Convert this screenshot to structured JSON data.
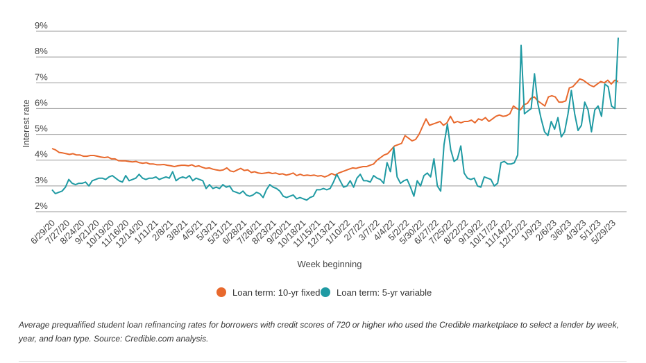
{
  "chart_data": {
    "type": "line",
    "xlabel": "Week beginning",
    "ylabel": "Interest rate",
    "ylim": [
      2,
      9
    ],
    "yticks": [
      "9%",
      "8%",
      "7%",
      "6%",
      "5%",
      "4%",
      "3%",
      "2%"
    ],
    "grid": "horizontal",
    "legend_position": "bottom",
    "x_tick_labels": [
      "6/29/20",
      "7/27/20",
      "8/24/20",
      "9/21/20",
      "10/19/20",
      "11/16/20",
      "12/14/20",
      "1/11/21",
      "2/8/21",
      "3/8/21",
      "4/5/21",
      "5/3/21",
      "5/31/21",
      "6/28/21",
      "7/26/21",
      "8/23/21",
      "9/20/21",
      "10/18/21",
      "11/15/21",
      "12/13/21",
      "1/10/22",
      "2/7/22",
      "3/7/22",
      "4/4/22",
      "5/2/22",
      "5/30/22",
      "6/27/22",
      "7/25/22",
      "8/22/22",
      "9/19/22",
      "10/17/22",
      "11/14/22",
      "12/12/22",
      "1/9/23",
      "2/6/23",
      "3/6/23",
      "4/3/23",
      "5/1/23",
      "5/29/23"
    ],
    "series": [
      {
        "name": "Loan term: 10-yr fixed",
        "color": "#E8692D",
        "values": [
          4.45,
          4.4,
          4.3,
          4.28,
          4.25,
          4.22,
          4.25,
          4.2,
          4.2,
          4.15,
          4.15,
          4.18,
          4.18,
          4.15,
          4.12,
          4.1,
          4.12,
          4.05,
          4.05,
          3.98,
          3.97,
          3.97,
          3.95,
          3.93,
          3.95,
          3.9,
          3.88,
          3.9,
          3.85,
          3.85,
          3.82,
          3.82,
          3.83,
          3.8,
          3.78,
          3.75,
          3.78,
          3.8,
          3.8,
          3.78,
          3.82,
          3.75,
          3.78,
          3.72,
          3.68,
          3.7,
          3.65,
          3.62,
          3.6,
          3.62,
          3.7,
          3.58,
          3.55,
          3.62,
          3.68,
          3.6,
          3.62,
          3.52,
          3.55,
          3.5,
          3.48,
          3.5,
          3.52,
          3.48,
          3.5,
          3.45,
          3.47,
          3.42,
          3.45,
          3.5,
          3.4,
          3.45,
          3.4,
          3.42,
          3.4,
          3.42,
          3.38,
          3.4,
          3.35,
          3.4,
          3.48,
          3.42,
          3.5,
          3.55,
          3.6,
          3.65,
          3.7,
          3.68,
          3.72,
          3.75,
          3.75,
          3.8,
          3.85,
          4.0,
          4.1,
          4.2,
          4.25,
          4.4,
          4.55,
          4.6,
          4.65,
          4.95,
          4.85,
          4.75,
          4.8,
          5.0,
          5.3,
          5.6,
          5.35,
          5.4,
          5.45,
          5.5,
          5.35,
          5.45,
          5.7,
          5.45,
          5.5,
          5.45,
          5.5,
          5.5,
          5.55,
          5.45,
          5.6,
          5.55,
          5.65,
          5.5,
          5.6,
          5.7,
          5.75,
          5.7,
          5.72,
          5.8,
          6.1,
          6.0,
          5.95,
          6.15,
          6.2,
          6.4,
          6.45,
          6.3,
          6.2,
          6.1,
          6.45,
          6.5,
          6.45,
          6.25,
          6.25,
          6.3,
          6.8,
          6.85,
          7.0,
          7.15,
          7.1,
          7.0,
          6.9,
          6.85,
          6.95,
          7.05,
          7.0,
          7.1,
          6.95,
          7.1,
          7.05
        ]
      },
      {
        "name": "Loan term: 5-yr variable",
        "color": "#1F9AA3",
        "values": [
          2.85,
          2.7,
          2.75,
          2.8,
          2.95,
          3.25,
          3.1,
          3.05,
          3.1,
          3.1,
          3.15,
          3.0,
          3.2,
          3.25,
          3.3,
          3.3,
          3.25,
          3.35,
          3.4,
          3.3,
          3.2,
          3.15,
          3.4,
          3.2,
          3.25,
          3.3,
          3.45,
          3.3,
          3.25,
          3.3,
          3.3,
          3.35,
          3.25,
          3.3,
          3.35,
          3.3,
          3.55,
          3.2,
          3.3,
          3.35,
          3.3,
          3.4,
          3.2,
          3.3,
          3.25,
          3.2,
          2.9,
          3.05,
          2.9,
          2.95,
          2.9,
          3.05,
          2.95,
          3.0,
          2.8,
          2.75,
          2.7,
          2.8,
          2.65,
          2.6,
          2.65,
          2.75,
          2.7,
          2.55,
          2.85,
          3.05,
          2.95,
          2.9,
          2.8,
          2.6,
          2.55,
          2.6,
          2.65,
          2.5,
          2.55,
          2.5,
          2.45,
          2.55,
          2.6,
          2.85,
          2.85,
          2.9,
          2.85,
          2.9,
          3.15,
          3.45,
          3.2,
          2.95,
          3.0,
          3.2,
          2.95,
          3.3,
          3.45,
          3.2,
          3.2,
          3.15,
          3.4,
          3.3,
          3.25,
          3.1,
          3.9,
          3.55,
          4.5,
          3.35,
          3.1,
          3.2,
          3.25,
          2.95,
          2.6,
          3.2,
          3.0,
          3.4,
          3.5,
          3.35,
          4.05,
          3.0,
          2.8,
          4.6,
          5.4,
          4.4,
          3.95,
          4.05,
          4.55,
          3.5,
          3.3,
          3.25,
          3.3,
          3.0,
          2.95,
          3.35,
          3.3,
          3.25,
          3.0,
          3.1,
          3.9,
          3.95,
          3.85,
          3.85,
          3.9,
          4.2,
          8.45,
          5.8,
          5.9,
          6.0,
          7.35,
          6.2,
          5.6,
          5.1,
          4.95,
          5.5,
          5.2,
          5.65,
          4.9,
          5.1,
          5.8,
          6.7,
          5.8,
          5.15,
          5.35,
          6.25,
          5.95,
          5.1,
          5.95,
          6.1,
          5.7,
          6.95,
          6.85,
          6.1,
          6.0,
          8.75
        ]
      }
    ]
  },
  "caption": "Average prequalified student loan refinancing rates for borrowers with credit scores of 720 or higher who used the Credible marketplace to select a lender by week, year, and loan type. Source: Credible.com analysis."
}
